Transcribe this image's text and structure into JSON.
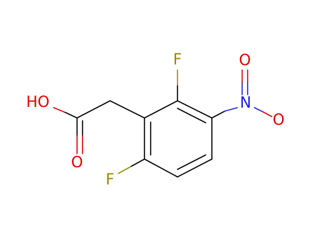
{
  "atoms": [
    {
      "label": "HO"
    },
    {
      "label": "O"
    },
    {
      "label": "F"
    },
    {
      "label": "F"
    },
    {
      "label": "N"
    },
    {
      "label": "O"
    },
    {
      "label": "O"
    }
  ]
}
